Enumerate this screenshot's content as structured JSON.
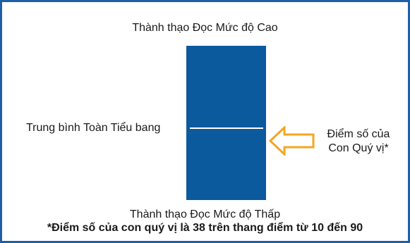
{
  "diagram": {
    "top_label": "Thành thạo Đọc Mức độ Cao",
    "average_label": "Trung bình Toàn Tiểu bang",
    "score_label_line1": "Điểm số của",
    "score_label_line2": "Con Quý vị*",
    "bottom_label": "Thành thạo Đọc Mức độ Thấp",
    "footnote": "*Điểm số của con quý vị là 38 trên thang điểm từ 10 đến 90",
    "colors": {
      "border": "#1f5fa8",
      "bar": "#0b5a9e",
      "average_line": "#ffffff",
      "arrow_fill": "#ffffff",
      "arrow_stroke": "#f5a623"
    }
  }
}
